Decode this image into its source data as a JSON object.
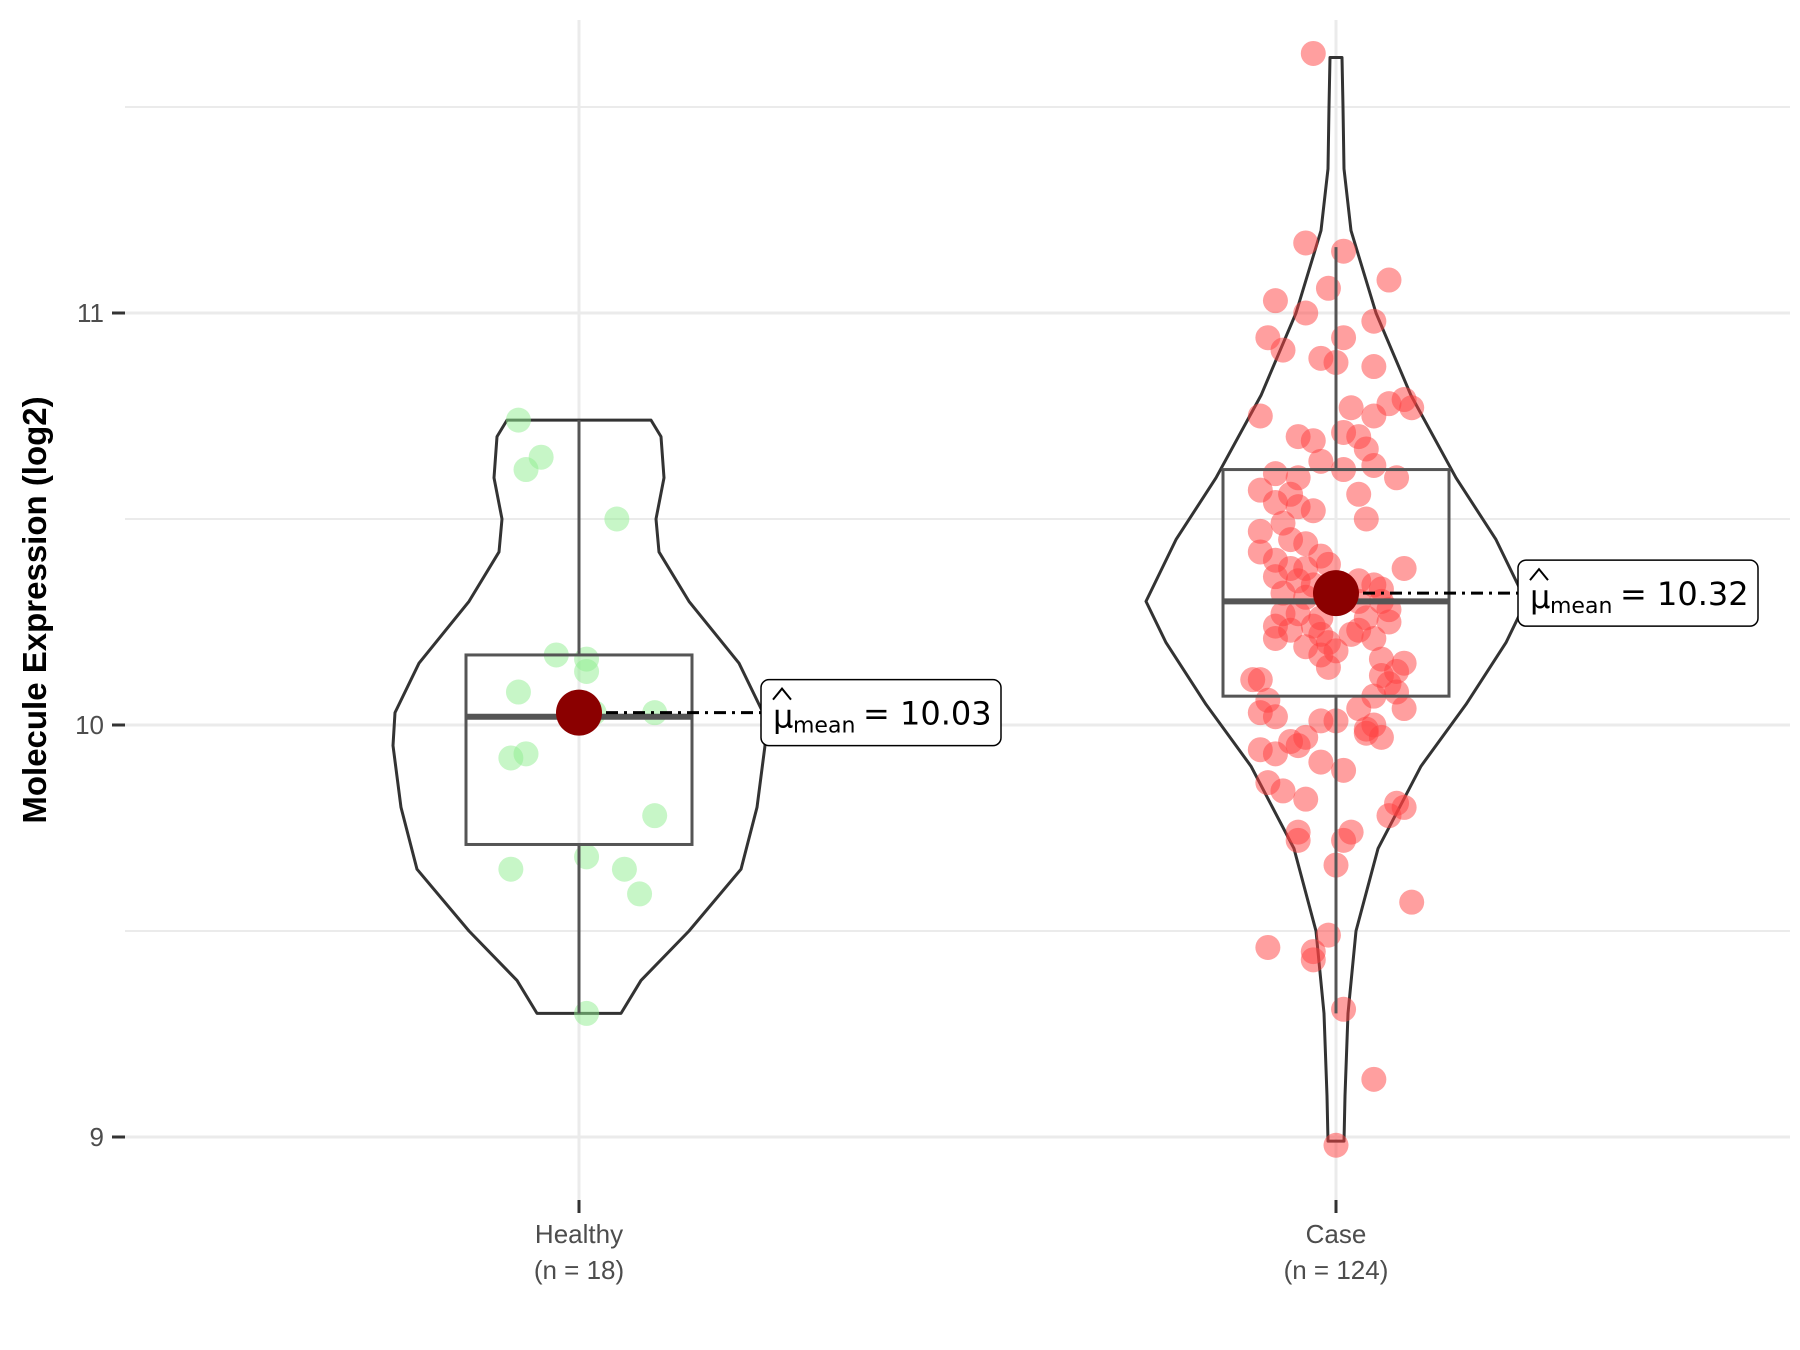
{
  "chart_data": {
    "type": "violin",
    "title": "",
    "xlabel": "",
    "ylabel": "Molecule Expression (log2)",
    "ylim": [
      8.87,
      11.67
    ],
    "yticks": [
      9,
      10,
      11
    ],
    "grid": true,
    "categories": [
      "Healthy",
      "Case"
    ],
    "category_subtitles": [
      "(n = 18)",
      "(n = 124)"
    ],
    "groups": [
      {
        "name": "Healthy",
        "n": 18,
        "color": "#90ee90",
        "mean": 10.03,
        "mean_label": "10.03",
        "median": 10.02,
        "q1": 9.71,
        "q3": 10.17,
        "whisker_low": 9.3,
        "whisker_high": 10.74,
        "violin_min": 9.3,
        "violin_max": 10.74,
        "points": [
          [
            -0.08,
            10.74
          ],
          [
            -0.07,
            10.62
          ],
          [
            -0.05,
            10.65
          ],
          [
            0.05,
            10.5
          ],
          [
            -0.03,
            10.17
          ],
          [
            0.01,
            10.16
          ],
          [
            0.01,
            10.13
          ],
          [
            -0.08,
            10.08
          ],
          [
            0.1,
            10.03
          ],
          [
            0.02,
            10.03
          ],
          [
            -0.09,
            9.92
          ],
          [
            -0.07,
            9.93
          ],
          [
            0.1,
            9.78
          ],
          [
            0.01,
            9.68
          ],
          [
            -0.09,
            9.65
          ],
          [
            0.06,
            9.65
          ],
          [
            0.08,
            9.59
          ],
          [
            0.01,
            9.3
          ]
        ]
      },
      {
        "name": "Case",
        "n": 124,
        "color": "#ff4040",
        "mean": 10.32,
        "mean_label": "10.32",
        "median": 10.3,
        "q1": 10.07,
        "q3": 10.62,
        "whisker_low": 9.3,
        "whisker_high": 11.16,
        "violin_min": 8.99,
        "violin_max": 11.62,
        "points": [
          [
            -0.03,
            11.63
          ],
          [
            -0.04,
            11.17
          ],
          [
            0.01,
            11.15
          ],
          [
            0.07,
            11.08
          ],
          [
            -0.01,
            11.06
          ],
          [
            -0.08,
            11.03
          ],
          [
            -0.04,
            11.0
          ],
          [
            0.05,
            10.98
          ],
          [
            -0.09,
            10.94
          ],
          [
            0.01,
            10.94
          ],
          [
            -0.07,
            10.91
          ],
          [
            -0.02,
            10.89
          ],
          [
            0.0,
            10.88
          ],
          [
            0.05,
            10.87
          ],
          [
            0.09,
            10.79
          ],
          [
            0.07,
            10.78
          ],
          [
            0.1,
            10.77
          ],
          [
            0.02,
            10.77
          ],
          [
            -0.1,
            10.75
          ],
          [
            0.05,
            10.75
          ],
          [
            -0.05,
            10.7
          ],
          [
            0.03,
            10.7
          ],
          [
            0.01,
            10.71
          ],
          [
            -0.03,
            10.69
          ],
          [
            0.04,
            10.67
          ],
          [
            -0.02,
            10.64
          ],
          [
            0.05,
            10.63
          ],
          [
            0.01,
            10.62
          ],
          [
            -0.08,
            10.61
          ],
          [
            -0.05,
            10.6
          ],
          [
            0.08,
            10.6
          ],
          [
            -0.1,
            10.57
          ],
          [
            -0.06,
            10.56
          ],
          [
            0.03,
            10.56
          ],
          [
            -0.08,
            10.54
          ],
          [
            -0.05,
            10.53
          ],
          [
            -0.03,
            10.52
          ],
          [
            0.04,
            10.5
          ],
          [
            -0.07,
            10.49
          ],
          [
            -0.1,
            10.47
          ],
          [
            -0.06,
            10.45
          ],
          [
            -0.04,
            10.44
          ],
          [
            -0.1,
            10.42
          ],
          [
            -0.08,
            10.4
          ],
          [
            -0.02,
            10.41
          ],
          [
            -0.06,
            10.38
          ],
          [
            -0.04,
            10.38
          ],
          [
            -0.01,
            10.39
          ],
          [
            0.09,
            10.38
          ],
          [
            -0.08,
            10.36
          ],
          [
            -0.05,
            10.35
          ],
          [
            -0.03,
            10.34
          ],
          [
            0.05,
            10.34
          ],
          [
            0.06,
            10.33
          ],
          [
            -0.07,
            10.32
          ],
          [
            -0.04,
            10.31
          ],
          [
            0.06,
            10.3
          ],
          [
            0.03,
            10.3
          ],
          [
            0.07,
            10.28
          ],
          [
            -0.07,
            10.27
          ],
          [
            -0.05,
            10.27
          ],
          [
            -0.02,
            10.26
          ],
          [
            0.04,
            10.26
          ],
          [
            0.07,
            10.25
          ],
          [
            -0.03,
            10.24
          ],
          [
            -0.08,
            10.24
          ],
          [
            0.03,
            10.23
          ],
          [
            -0.06,
            10.23
          ],
          [
            -0.02,
            10.22
          ],
          [
            0.02,
            10.22
          ],
          [
            -0.08,
            10.21
          ],
          [
            0.05,
            10.21
          ],
          [
            -0.01,
            10.2
          ],
          [
            -0.04,
            10.19
          ],
          [
            0.0,
            10.18
          ],
          [
            -0.02,
            10.17
          ],
          [
            0.06,
            10.16
          ],
          [
            0.09,
            10.15
          ],
          [
            -0.01,
            10.14
          ],
          [
            0.08,
            10.13
          ],
          [
            0.06,
            10.12
          ],
          [
            -0.1,
            10.11
          ],
          [
            -0.11,
            10.11
          ],
          [
            0.07,
            10.1
          ],
          [
            0.08,
            10.08
          ],
          [
            -0.09,
            10.06
          ],
          [
            0.05,
            10.07
          ],
          [
            0.09,
            10.04
          ],
          [
            -0.1,
            10.03
          ],
          [
            0.03,
            10.04
          ],
          [
            -0.08,
            10.02
          ],
          [
            0.0,
            10.01
          ],
          [
            -0.02,
            10.01
          ],
          [
            0.05,
            10.0
          ],
          [
            0.04,
            9.99
          ],
          [
            -0.04,
            9.97
          ],
          [
            -0.05,
            9.95
          ],
          [
            -0.1,
            9.94
          ],
          [
            -0.08,
            9.93
          ],
          [
            0.04,
            9.98
          ],
          [
            0.06,
            9.97
          ],
          [
            -0.02,
            9.91
          ],
          [
            0.01,
            9.89
          ],
          [
            -0.09,
            9.86
          ],
          [
            -0.07,
            9.84
          ],
          [
            -0.04,
            9.82
          ],
          [
            0.08,
            9.81
          ],
          [
            0.07,
            9.78
          ],
          [
            -0.05,
            9.74
          ],
          [
            0.02,
            9.74
          ],
          [
            0.01,
            9.72
          ],
          [
            -0.05,
            9.72
          ],
          [
            0.0,
            9.66
          ],
          [
            0.1,
            9.57
          ],
          [
            -0.01,
            9.49
          ],
          [
            -0.09,
            9.46
          ],
          [
            -0.03,
            9.45
          ],
          [
            -0.03,
            9.43
          ],
          [
            0.01,
            9.31
          ],
          [
            0.05,
            9.14
          ],
          [
            0.0,
            8.98
          ],
          [
            0.09,
            9.8
          ],
          [
            -0.06,
            9.96
          ],
          [
            0.03,
            10.35
          ]
        ]
      }
    ]
  }
}
